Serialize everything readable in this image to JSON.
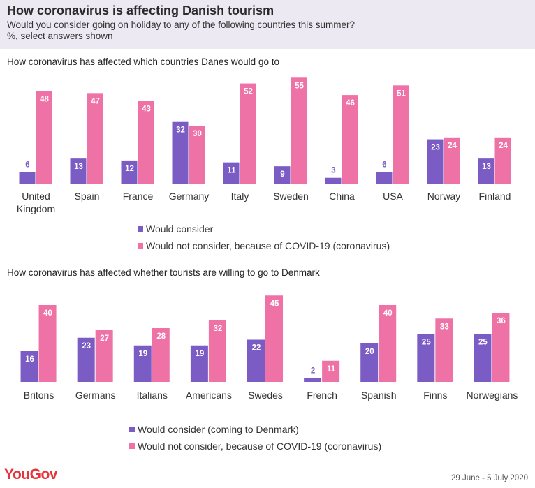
{
  "header": {
    "title": "How coronavirus is affecting Danish tourism",
    "subtitle": "Would you consider going on holiday to any of the following countries this summer?",
    "subtitle2": "%, select answers shown"
  },
  "colors": {
    "consider": "#7b5cc4",
    "not_consider": "#ef72a6"
  },
  "chart_data": [
    {
      "type": "bar",
      "title": "How coronavirus has affected which countries Danes would go to",
      "categories": [
        "United Kingdom",
        "Spain",
        "France",
        "Germany",
        "Italy",
        "Sweden",
        "China",
        "USA",
        "Norway",
        "Finland"
      ],
      "series": [
        {
          "name": "Would consider",
          "values": [
            6,
            13,
            12,
            32,
            11,
            9,
            3,
            6,
            23,
            13
          ]
        },
        {
          "name": "Would not consider, because of COVID-19 (coronavirus)",
          "values": [
            48,
            47,
            43,
            30,
            52,
            55,
            46,
            51,
            24,
            24
          ]
        }
      ],
      "ylim": [
        0,
        58
      ],
      "legend_position": "bottom-center"
    },
    {
      "type": "bar",
      "title": "How coronavirus has affected whether tourists are willing to go to Denmark",
      "categories": [
        "Britons",
        "Germans",
        "Italians",
        "Americans",
        "Swedes",
        "French",
        "Spanish",
        "Finns",
        "Norwegians"
      ],
      "series": [
        {
          "name": "Would consider (coming to Denmark)",
          "values": [
            16,
            23,
            19,
            19,
            22,
            2,
            20,
            25,
            25
          ]
        },
        {
          "name": "Would not consider, because of COVID-19 (coronavirus)",
          "values": [
            40,
            27,
            28,
            32,
            45,
            11,
            40,
            33,
            36
          ]
        }
      ],
      "ylim": [
        0,
        48
      ],
      "legend_position": "bottom-center"
    }
  ],
  "footer": {
    "brand": "YouGov",
    "date": "29 June - 5 July 2020"
  }
}
